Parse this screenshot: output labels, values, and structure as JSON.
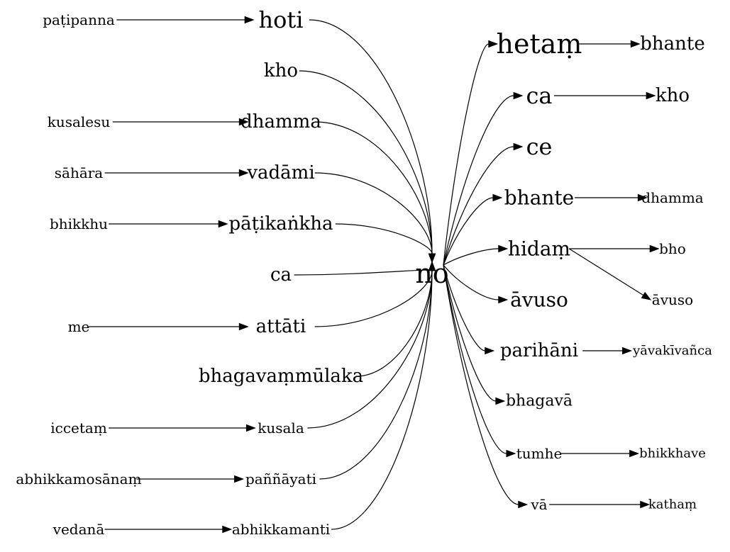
{
  "graph": {
    "center": "no",
    "nodes": [
      {
        "id": "no",
        "label": "no"
      },
      {
        "id": "hoti",
        "label": "hoti"
      },
      {
        "id": "kho_l",
        "label": "kho"
      },
      {
        "id": "dhamma_l",
        "label": "dhamma"
      },
      {
        "id": "vadami",
        "label": "vadāmi"
      },
      {
        "id": "patikankha",
        "label": "pāṭikaṅkha"
      },
      {
        "id": "ca_l",
        "label": "ca"
      },
      {
        "id": "attati",
        "label": "attāti"
      },
      {
        "id": "bhagavammulaka",
        "label": "bhagavaṃmūlaka"
      },
      {
        "id": "kusala",
        "label": "kusala"
      },
      {
        "id": "pannayati",
        "label": "paññāyati"
      },
      {
        "id": "abhikkamanti",
        "label": "abhikkamanti"
      },
      {
        "id": "patipanna",
        "label": "paṭipanna"
      },
      {
        "id": "kusalesu",
        "label": "kusalesu"
      },
      {
        "id": "sahara",
        "label": "sāhāra"
      },
      {
        "id": "bhikkhu",
        "label": "bhikkhu"
      },
      {
        "id": "me",
        "label": "me"
      },
      {
        "id": "iccetam",
        "label": "iccetaṃ"
      },
      {
        "id": "abhikkamosanam",
        "label": "abhikkamosānaṃ"
      },
      {
        "id": "vedana",
        "label": "vedanā"
      },
      {
        "id": "hetam",
        "label": "hetaṃ"
      },
      {
        "id": "ca_r",
        "label": "ca"
      },
      {
        "id": "ce",
        "label": "ce"
      },
      {
        "id": "bhante_r",
        "label": "bhante"
      },
      {
        "id": "hidam",
        "label": "hidaṃ"
      },
      {
        "id": "avuso_r",
        "label": "āvuso"
      },
      {
        "id": "parihani",
        "label": "parihāni"
      },
      {
        "id": "bhagava",
        "label": "bhagavā"
      },
      {
        "id": "tumhe",
        "label": "tumhe"
      },
      {
        "id": "va",
        "label": "vā"
      },
      {
        "id": "bhante_rr",
        "label": "bhante"
      },
      {
        "id": "kho_rr",
        "label": "kho"
      },
      {
        "id": "dhamma_rr",
        "label": "dhamma"
      },
      {
        "id": "bho",
        "label": "bho"
      },
      {
        "id": "avuso_rr",
        "label": "āvuso"
      },
      {
        "id": "yavakivanca",
        "label": "yāvakīvañca"
      },
      {
        "id": "bhikkhave",
        "label": "bhikkhave"
      },
      {
        "id": "katham",
        "label": "kathaṃ"
      }
    ],
    "edges": [
      {
        "from": "patipanna",
        "to": "hoti"
      },
      {
        "from": "kusalesu",
        "to": "dhamma_l"
      },
      {
        "from": "sahara",
        "to": "vadami"
      },
      {
        "from": "bhikkhu",
        "to": "patikankha"
      },
      {
        "from": "me",
        "to": "attati"
      },
      {
        "from": "iccetam",
        "to": "kusala"
      },
      {
        "from": "abhikkamosanam",
        "to": "pannayati"
      },
      {
        "from": "vedana",
        "to": "abhikkamanti"
      },
      {
        "from": "hoti",
        "to": "no"
      },
      {
        "from": "kho_l",
        "to": "no"
      },
      {
        "from": "dhamma_l",
        "to": "no"
      },
      {
        "from": "vadami",
        "to": "no"
      },
      {
        "from": "patikankha",
        "to": "no"
      },
      {
        "from": "ca_l",
        "to": "no"
      },
      {
        "from": "attati",
        "to": "no"
      },
      {
        "from": "bhagavammulaka",
        "to": "no"
      },
      {
        "from": "kusala",
        "to": "no"
      },
      {
        "from": "pannayati",
        "to": "no"
      },
      {
        "from": "abhikkamanti",
        "to": "no"
      },
      {
        "from": "no",
        "to": "hetam"
      },
      {
        "from": "no",
        "to": "ca_r"
      },
      {
        "from": "no",
        "to": "ce"
      },
      {
        "from": "no",
        "to": "bhante_r"
      },
      {
        "from": "no",
        "to": "hidam"
      },
      {
        "from": "no",
        "to": "avuso_r"
      },
      {
        "from": "no",
        "to": "parihani"
      },
      {
        "from": "no",
        "to": "bhagava"
      },
      {
        "from": "no",
        "to": "tumhe"
      },
      {
        "from": "no",
        "to": "va"
      },
      {
        "from": "hetam",
        "to": "bhante_rr"
      },
      {
        "from": "ca_r",
        "to": "kho_rr"
      },
      {
        "from": "bhante_r",
        "to": "dhamma_rr"
      },
      {
        "from": "hidam",
        "to": "bho"
      },
      {
        "from": "hidam",
        "to": "avuso_rr"
      },
      {
        "from": "parihani",
        "to": "yavakivanca"
      },
      {
        "from": "tumhe",
        "to": "bhikkhave"
      },
      {
        "from": "va",
        "to": "katham"
      }
    ]
  }
}
